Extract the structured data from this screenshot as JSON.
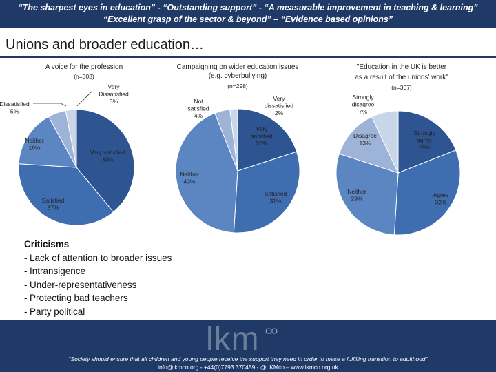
{
  "header": {
    "quote_line1": "“The sharpest eyes in education” - “Outstanding support” - “A measurable improvement in teaching & learning”",
    "quote_line2": "“Excellent grasp of the sector & beyond” – “Evidence based opinions”"
  },
  "slide_title": "Unions and broader education…",
  "chart_data": [
    {
      "type": "pie",
      "title": "A voice for the profession",
      "subtitle": "(n=303)",
      "categories": [
        "Very satisfied",
        "Satisfied",
        "Neither",
        "Dissatisfied",
        "Very Dissatisfied"
      ],
      "values": [
        39,
        37,
        16,
        5,
        3
      ],
      "labels": [
        "Very satisfied\n39%",
        "Satisfied\n37%",
        "Neither\n16%",
        "Dissatisfied\n5%",
        "Very\nDissatisfied\n3%"
      ],
      "colors": [
        "#2e5591",
        "#3e6eb0",
        "#5b86c2",
        "#9db4d8",
        "#c9d5e8"
      ],
      "start": "12 o'clock, clockwise",
      "legend": "none"
    },
    {
      "type": "pie",
      "title": "Campaigning on wider education issues (e.g. cyberbullying)",
      "subtitle": "(n=298)",
      "categories": [
        "Very satisfied",
        "Satisfied",
        "Neither",
        "Not satisfied",
        "Very dissatisfied"
      ],
      "values": [
        20,
        31,
        43,
        4,
        2
      ],
      "labels": [
        "Very\nsatisfied\n20%",
        "Satisfied\n31%",
        "Neither\n43%",
        "Not\nsatisfied\n4%",
        "Very\ndissatisfied\n2%"
      ],
      "colors": [
        "#2e5591",
        "#3e6eb0",
        "#5b86c2",
        "#9db4d8",
        "#c9d5e8"
      ],
      "start": "12 o'clock, clockwise",
      "legend": "none"
    },
    {
      "type": "pie",
      "title": "\"Education in the UK is better as a result of the unions' work\"",
      "subtitle": "(n=307)",
      "categories": [
        "Strongly agree",
        "Agree",
        "Neither",
        "Disagree",
        "Strongly disagree"
      ],
      "values": [
        19,
        32,
        29,
        13,
        7
      ],
      "labels": [
        "Strongly\nagree\n19%",
        "Agree\n32%",
        "Neither\n29%",
        "Disagree\n13%",
        "Strongly\ndisagree\n7%"
      ],
      "colors": [
        "#2e5591",
        "#3e6eb0",
        "#5b86c2",
        "#9db4d8",
        "#c9d5e8"
      ],
      "start": "12 o'clock, clockwise",
      "legend": "none"
    }
  ],
  "criticisms": {
    "title": "Criticisms",
    "dash": "-",
    "items": [
      "Lack of attention to broader issues",
      "Intransigence",
      "Under-representativeness",
      "Protecting bad teachers",
      "Party political"
    ]
  },
  "footer": {
    "logo": "lkm",
    "logo_sup": "CO",
    "tagline": "“Society should ensure that all children and young people receive the support they need in order to make a fulfilling transition to adulthood”",
    "contact": "info@lkmco.org - +44(0)7793 370459 - @LKMco – www.lkmco.org.uk"
  }
}
